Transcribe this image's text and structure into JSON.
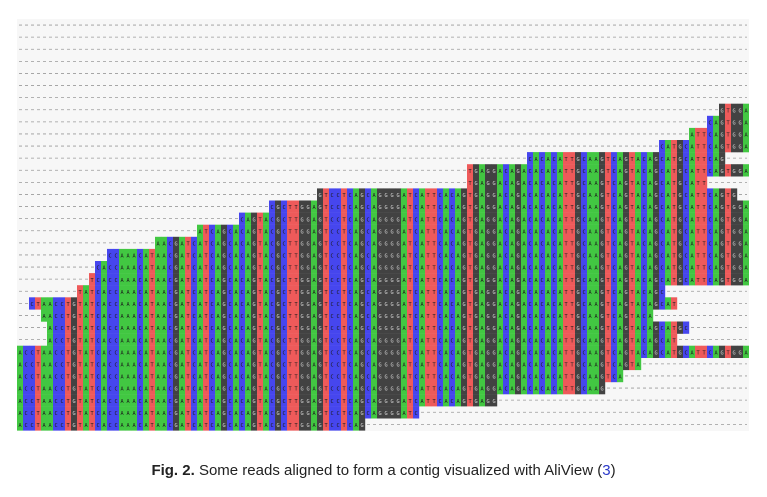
{
  "figure": {
    "label": "Fig. 2.",
    "caption_text": " Some reads aligned to form a contig visualized with AliView (",
    "reference": "3",
    "caption_end": ")"
  },
  "alignment": {
    "reference_sequence": "ACCTAACCTGTATCACCAAACATAACGATCATCAGCACAGTACGCTTGGAGTCCTCAGCAGGGGATCATTCACAGTGAGGACAGACACACATTGCAAGTCAGTACAGCATGCATTCAGTGGACATCAGGAGTCA",
    "reads": [
      {
        "start": 117,
        "end": 122
      },
      {
        "start": 115,
        "end": 122
      },
      {
        "start": 112,
        "end": 122
      },
      {
        "start": 107,
        "end": 122
      },
      {
        "start": 85,
        "end": 118
      },
      {
        "start": 75,
        "end": 122
      },
      {
        "start": 75,
        "end": 115
      },
      {
        "start": 50,
        "end": 120
      },
      {
        "start": 42,
        "end": 122
      },
      {
        "start": 37,
        "end": 122
      },
      {
        "start": 30,
        "end": 122
      },
      {
        "start": 23,
        "end": 122
      },
      {
        "start": 15,
        "end": 122
      },
      {
        "start": 13,
        "end": 122
      },
      {
        "start": 12,
        "end": 122
      },
      {
        "start": 10,
        "end": 108
      },
      {
        "start": 2,
        "end": 110
      },
      {
        "start": 4,
        "end": 106
      },
      {
        "start": 5,
        "end": 112
      },
      {
        "start": 5,
        "end": 110
      },
      {
        "start": 0,
        "end": 122
      },
      {
        "start": 0,
        "end": 104
      },
      {
        "start": 0,
        "end": 101
      },
      {
        "start": 0,
        "end": 98
      },
      {
        "start": 0,
        "end": 80
      },
      {
        "start": 0,
        "end": 67
      },
      {
        "start": 0,
        "end": 58
      }
    ],
    "empty_rows_top": 7,
    "colors": {
      "A": "#42c742",
      "C": "#4646ee",
      "G": "#424242",
      "T": "#ee5a5a",
      "gap": "#9a9a9a",
      "background": "#f7f7f7"
    }
  }
}
